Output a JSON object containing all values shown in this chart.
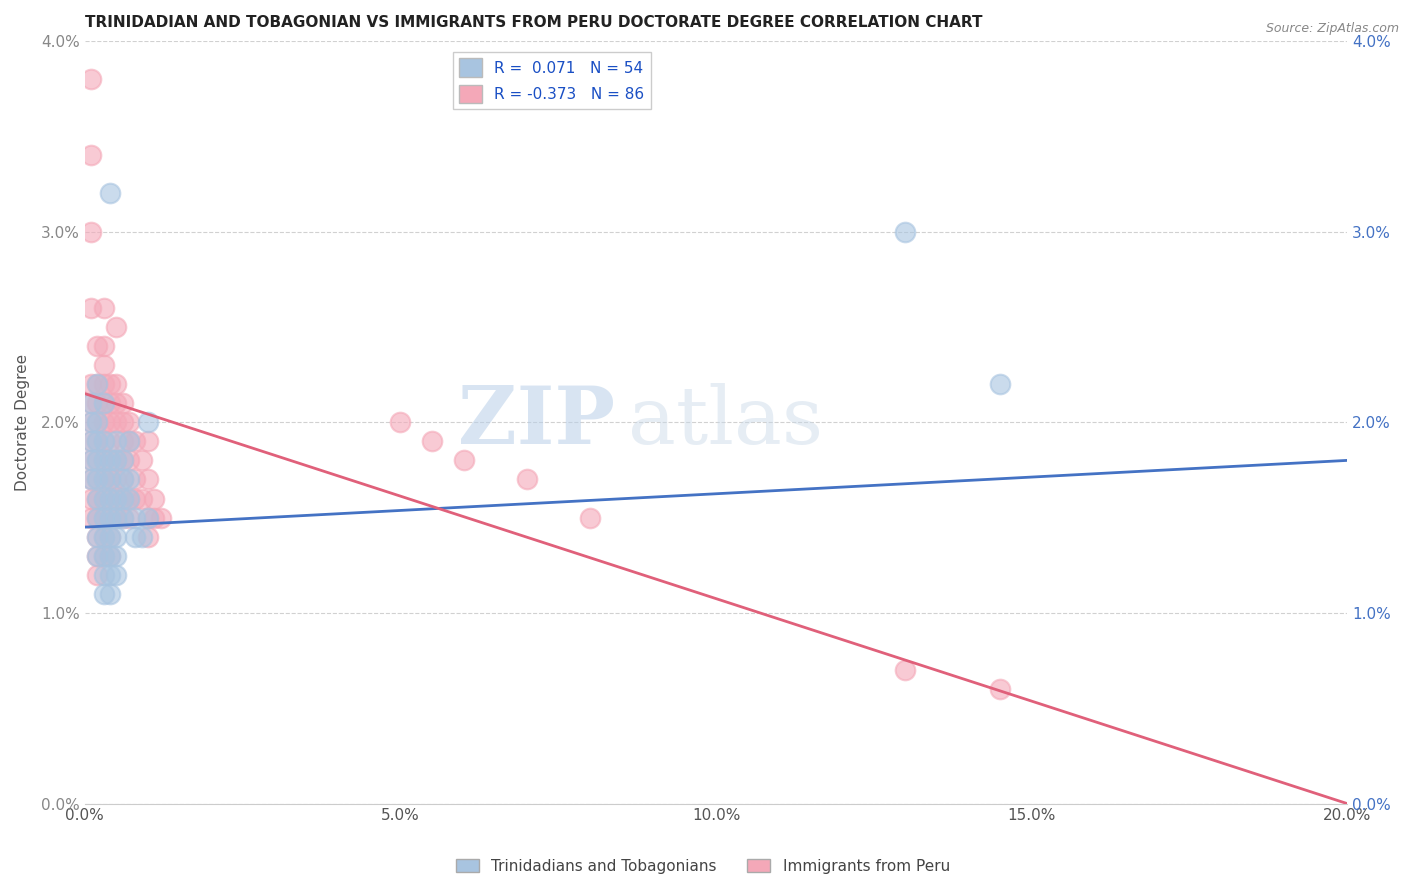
{
  "title": "TRINIDADIAN AND TOBAGONIAN VS IMMIGRANTS FROM PERU DOCTORATE DEGREE CORRELATION CHART",
  "source": "Source: ZipAtlas.com",
  "ylabel": "Doctorate Degree",
  "xlabel_ticks": [
    "0.0%",
    "5.0%",
    "10.0%",
    "15.0%",
    "20.0%"
  ],
  "xlabel_vals": [
    0.0,
    0.05,
    0.1,
    0.15,
    0.2
  ],
  "ylabel_ticks": [
    "0.0%",
    "1.0%",
    "2.0%",
    "3.0%",
    "4.0%"
  ],
  "ylabel_vals": [
    0.0,
    0.01,
    0.02,
    0.03,
    0.04
  ],
  "xlim": [
    0.0,
    0.2
  ],
  "ylim": [
    0.0,
    0.04
  ],
  "blue_R": 0.071,
  "blue_N": 54,
  "pink_R": -0.373,
  "pink_N": 86,
  "blue_color": "#a8c4e0",
  "pink_color": "#f4a8b8",
  "blue_line_color": "#4472c4",
  "pink_line_color": "#e0607a",
  "legend_label_blue": "Trinidadians and Tobagonians",
  "legend_label_pink": "Immigrants from Peru",
  "watermark_zip": "ZIP",
  "watermark_atlas": "atlas",
  "blue_line_x0": 0.0,
  "blue_line_y0": 0.0145,
  "blue_line_x1": 0.2,
  "blue_line_y1": 0.018,
  "pink_line_x0": 0.0,
  "pink_line_y0": 0.0215,
  "pink_line_x1": 0.2,
  "pink_line_y1": 0.0,
  "blue_points": [
    [
      0.001,
      0.02
    ],
    [
      0.001,
      0.019
    ],
    [
      0.001,
      0.018
    ],
    [
      0.001,
      0.017
    ],
    [
      0.001,
      0.021
    ],
    [
      0.002,
      0.022
    ],
    [
      0.002,
      0.02
    ],
    [
      0.002,
      0.019
    ],
    [
      0.002,
      0.018
    ],
    [
      0.002,
      0.017
    ],
    [
      0.002,
      0.016
    ],
    [
      0.002,
      0.015
    ],
    [
      0.002,
      0.014
    ],
    [
      0.002,
      0.013
    ],
    [
      0.003,
      0.021
    ],
    [
      0.003,
      0.019
    ],
    [
      0.003,
      0.018
    ],
    [
      0.003,
      0.017
    ],
    [
      0.003,
      0.016
    ],
    [
      0.003,
      0.015
    ],
    [
      0.003,
      0.014
    ],
    [
      0.003,
      0.013
    ],
    [
      0.003,
      0.012
    ],
    [
      0.003,
      0.011
    ],
    [
      0.004,
      0.032
    ],
    [
      0.004,
      0.018
    ],
    [
      0.004,
      0.017
    ],
    [
      0.004,
      0.016
    ],
    [
      0.004,
      0.015
    ],
    [
      0.004,
      0.014
    ],
    [
      0.004,
      0.013
    ],
    [
      0.004,
      0.012
    ],
    [
      0.004,
      0.011
    ],
    [
      0.005,
      0.019
    ],
    [
      0.005,
      0.018
    ],
    [
      0.005,
      0.016
    ],
    [
      0.005,
      0.015
    ],
    [
      0.005,
      0.014
    ],
    [
      0.005,
      0.013
    ],
    [
      0.005,
      0.012
    ],
    [
      0.006,
      0.018
    ],
    [
      0.006,
      0.017
    ],
    [
      0.006,
      0.016
    ],
    [
      0.006,
      0.015
    ],
    [
      0.007,
      0.019
    ],
    [
      0.007,
      0.017
    ],
    [
      0.007,
      0.016
    ],
    [
      0.008,
      0.015
    ],
    [
      0.008,
      0.014
    ],
    [
      0.009,
      0.014
    ],
    [
      0.01,
      0.02
    ],
    [
      0.01,
      0.015
    ],
    [
      0.13,
      0.03
    ],
    [
      0.145,
      0.022
    ]
  ],
  "pink_points": [
    [
      0.001,
      0.038
    ],
    [
      0.001,
      0.034
    ],
    [
      0.001,
      0.03
    ],
    [
      0.001,
      0.026
    ],
    [
      0.001,
      0.022
    ],
    [
      0.001,
      0.021
    ],
    [
      0.001,
      0.02
    ],
    [
      0.001,
      0.019
    ],
    [
      0.001,
      0.018
    ],
    [
      0.001,
      0.017
    ],
    [
      0.001,
      0.016
    ],
    [
      0.001,
      0.015
    ],
    [
      0.002,
      0.024
    ],
    [
      0.002,
      0.022
    ],
    [
      0.002,
      0.021
    ],
    [
      0.002,
      0.02
    ],
    [
      0.002,
      0.019
    ],
    [
      0.002,
      0.018
    ],
    [
      0.002,
      0.017
    ],
    [
      0.002,
      0.016
    ],
    [
      0.002,
      0.015
    ],
    [
      0.002,
      0.014
    ],
    [
      0.002,
      0.013
    ],
    [
      0.002,
      0.012
    ],
    [
      0.003,
      0.026
    ],
    [
      0.003,
      0.024
    ],
    [
      0.003,
      0.023
    ],
    [
      0.003,
      0.022
    ],
    [
      0.003,
      0.021
    ],
    [
      0.003,
      0.02
    ],
    [
      0.003,
      0.019
    ],
    [
      0.003,
      0.018
    ],
    [
      0.003,
      0.017
    ],
    [
      0.003,
      0.016
    ],
    [
      0.003,
      0.015
    ],
    [
      0.003,
      0.014
    ],
    [
      0.003,
      0.013
    ],
    [
      0.004,
      0.022
    ],
    [
      0.004,
      0.021
    ],
    [
      0.004,
      0.02
    ],
    [
      0.004,
      0.019
    ],
    [
      0.004,
      0.018
    ],
    [
      0.004,
      0.017
    ],
    [
      0.004,
      0.016
    ],
    [
      0.004,
      0.015
    ],
    [
      0.004,
      0.014
    ],
    [
      0.004,
      0.013
    ],
    [
      0.005,
      0.025
    ],
    [
      0.005,
      0.022
    ],
    [
      0.005,
      0.021
    ],
    [
      0.005,
      0.02
    ],
    [
      0.005,
      0.018
    ],
    [
      0.005,
      0.017
    ],
    [
      0.005,
      0.016
    ],
    [
      0.005,
      0.015
    ],
    [
      0.006,
      0.021
    ],
    [
      0.006,
      0.02
    ],
    [
      0.006,
      0.019
    ],
    [
      0.006,
      0.018
    ],
    [
      0.006,
      0.017
    ],
    [
      0.006,
      0.016
    ],
    [
      0.006,
      0.015
    ],
    [
      0.007,
      0.02
    ],
    [
      0.007,
      0.019
    ],
    [
      0.007,
      0.018
    ],
    [
      0.007,
      0.016
    ],
    [
      0.007,
      0.015
    ],
    [
      0.008,
      0.019
    ],
    [
      0.008,
      0.017
    ],
    [
      0.008,
      0.016
    ],
    [
      0.009,
      0.018
    ],
    [
      0.009,
      0.016
    ],
    [
      0.01,
      0.019
    ],
    [
      0.01,
      0.017
    ],
    [
      0.01,
      0.015
    ],
    [
      0.01,
      0.014
    ],
    [
      0.011,
      0.016
    ],
    [
      0.011,
      0.015
    ],
    [
      0.012,
      0.015
    ],
    [
      0.05,
      0.02
    ],
    [
      0.055,
      0.019
    ],
    [
      0.06,
      0.018
    ],
    [
      0.07,
      0.017
    ],
    [
      0.08,
      0.015
    ],
    [
      0.13,
      0.007
    ],
    [
      0.145,
      0.006
    ]
  ]
}
